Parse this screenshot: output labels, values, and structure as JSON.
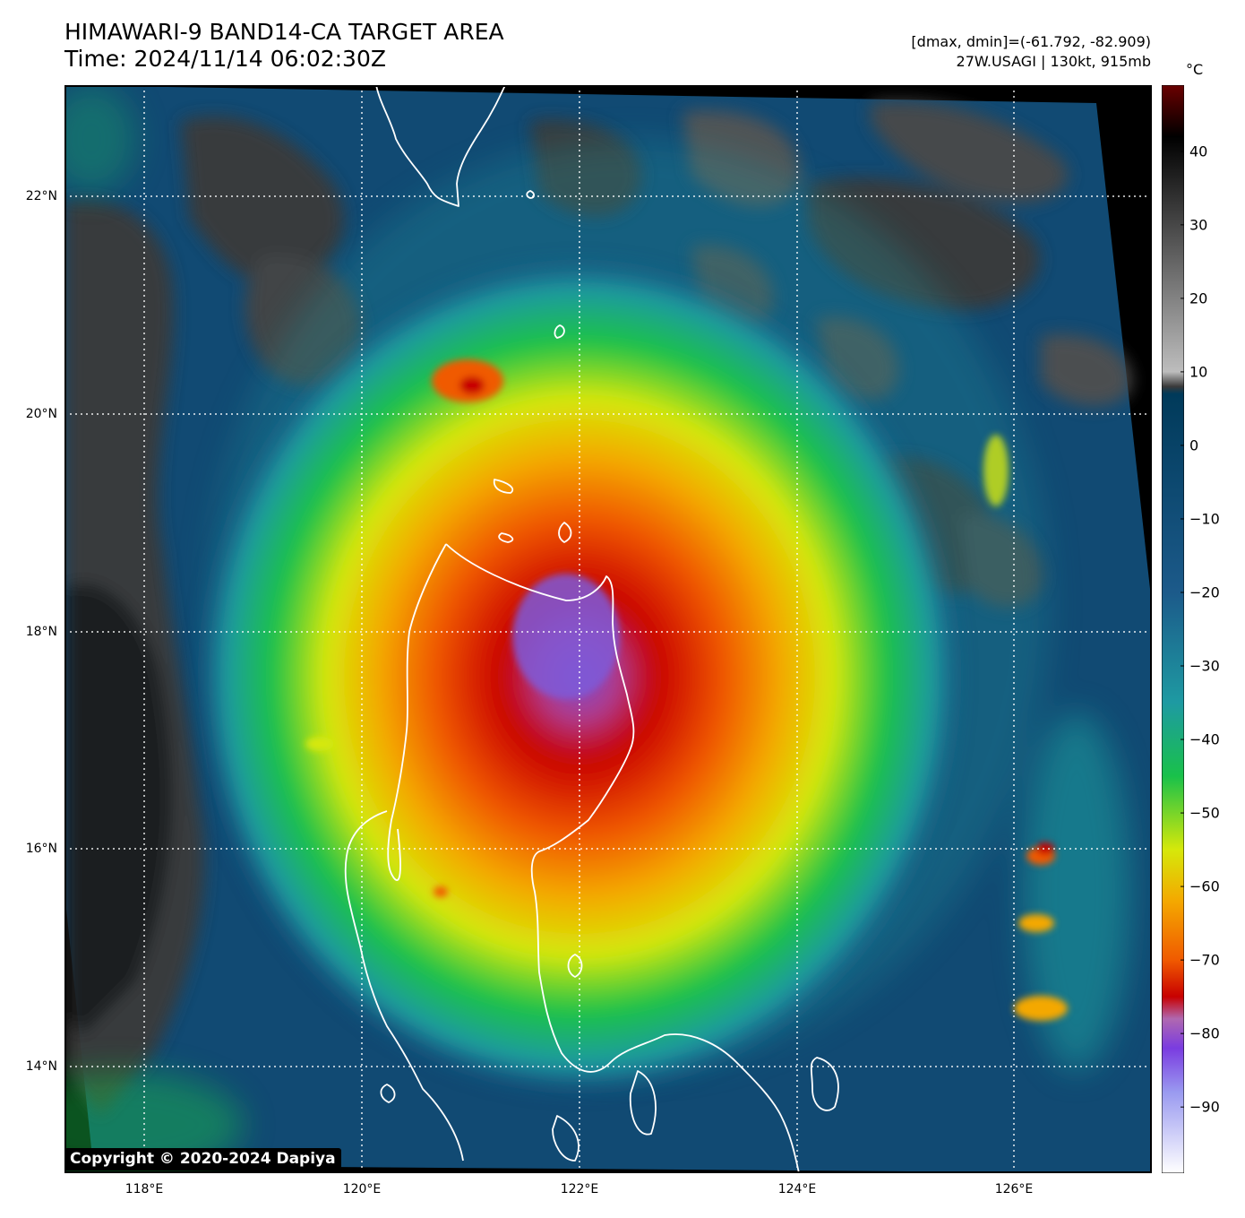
{
  "header": {
    "title_line1": "HIMAWARI-9 BAND14-CA TARGET AREA",
    "title_line2": "Time: 2024/11/14 06:02:30Z",
    "info_line1": "[dmax, dmin]=(-61.792, -82.909)",
    "info_line2": "27W.USAGI | 130kt, 915mb"
  },
  "map": {
    "lon_labels": [
      "118°E",
      "120°E",
      "122°E",
      "124°E",
      "126°E"
    ],
    "lat_labels": [
      "22°N",
      "20°N",
      "18°N",
      "16°N",
      "14°N"
    ],
    "storm_center": {
      "lon": 121.9,
      "lat": 17.85
    },
    "copyright": "Copyright © 2020-2024 Dapiya"
  },
  "colorbar": {
    "unit": "°C",
    "ticks": [
      "40",
      "30",
      "20",
      "10",
      "0",
      "−10",
      "−20",
      "−30",
      "−40",
      "−50",
      "−60",
      "−70",
      "−80",
      "−90"
    ],
    "stops": [
      {
        "t": 49,
        "color": "#6a0000"
      },
      {
        "t": 42,
        "color": "#000000"
      },
      {
        "t": 10,
        "color": "#bdbdbd"
      },
      {
        "t": 8,
        "color": "#3a3a3a"
      },
      {
        "t": 7,
        "color": "#003a5a"
      },
      {
        "t": -20,
        "color": "#1c5a8a"
      },
      {
        "t": -35,
        "color": "#1e9aa2"
      },
      {
        "t": -45,
        "color": "#19c14a"
      },
      {
        "t": -55,
        "color": "#d6e80a"
      },
      {
        "t": -62,
        "color": "#f4a800"
      },
      {
        "t": -70,
        "color": "#f05a00"
      },
      {
        "t": -75,
        "color": "#c80000"
      },
      {
        "t": -78,
        "color": "#b068b0"
      },
      {
        "t": -82,
        "color": "#7a3ce0"
      },
      {
        "t": -88,
        "color": "#9a9af0"
      },
      {
        "t": -99,
        "color": "#ffffff"
      }
    ]
  }
}
